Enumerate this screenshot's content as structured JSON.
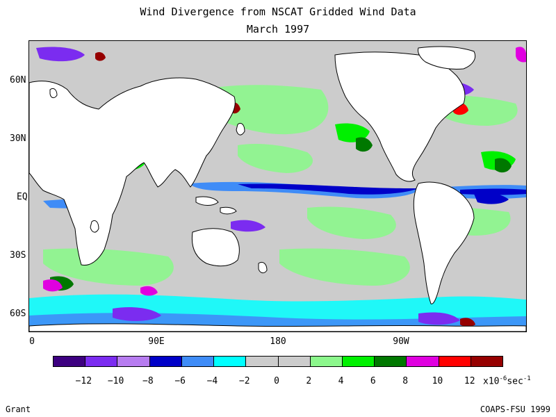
{
  "title": {
    "line1": "Wind Divergence from NSCAT Gridded Wind Data",
    "line2": "March 1997"
  },
  "axes": {
    "y_labels": [
      "60N",
      "30N",
      "EQ",
      "30S",
      "60S"
    ],
    "x_labels": [
      "0",
      "90E",
      "180",
      "90W"
    ]
  },
  "colorbar": {
    "colors": [
      "#3d0080",
      "#7b2cf0",
      "#b77cf0",
      "#0000c8",
      "#3f8cf7",
      "#00ffff",
      "#cccccc",
      "#cccccc",
      "#8cf78c",
      "#00f000",
      "#007800",
      "#e000e0",
      "#ff0000",
      "#960000"
    ],
    "tick_labels": [
      "-12",
      "-10",
      "-8",
      "-6",
      "-4",
      "-2",
      "0",
      "2",
      "4",
      "6",
      "8",
      "10",
      "12"
    ],
    "units_base": "x10",
    "units_exp": "-6",
    "units_tail": "sec",
    "units_tail_exp": "-1"
  },
  "footer": {
    "left": "Grant",
    "right": "COAPS-FSU 1999"
  }
}
